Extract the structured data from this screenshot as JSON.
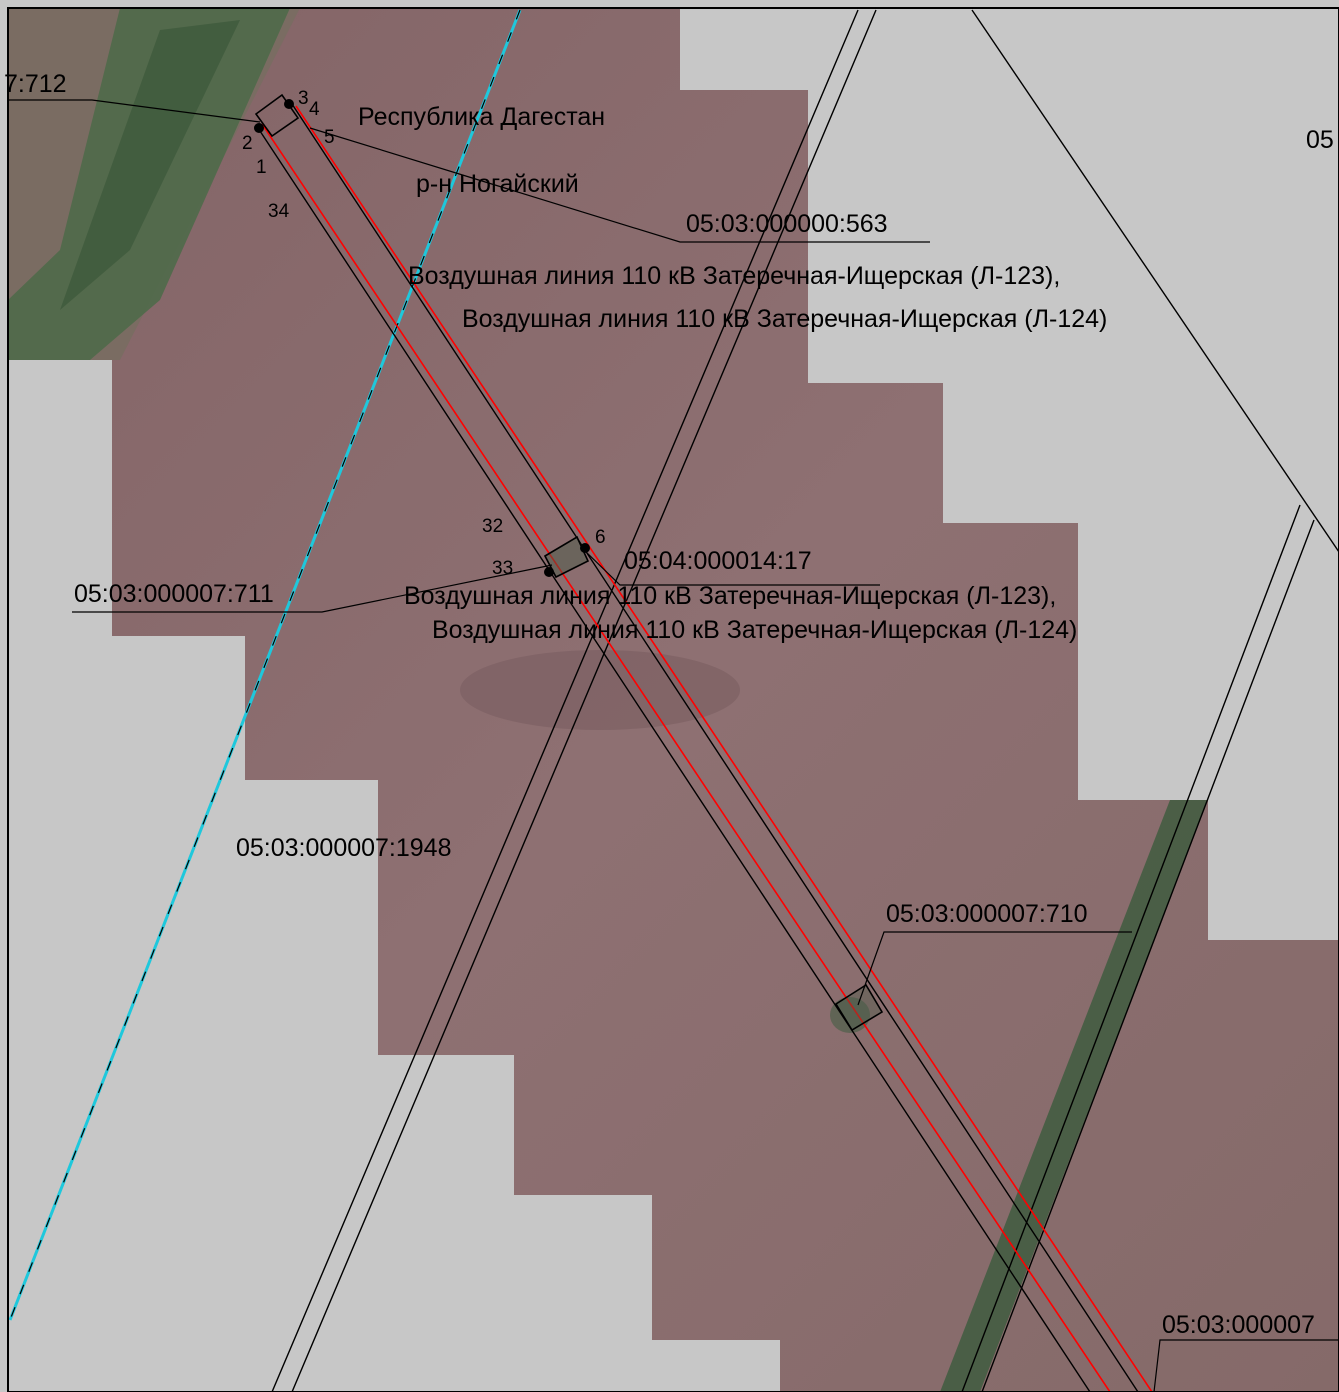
{
  "parcels": {
    "p712": "7:712",
    "p563": "05:03:000000:563",
    "p711": "05:03:000007:711",
    "p1417": "05:04:000014:17",
    "p1948": "05:03:000007:1948",
    "p710": "05:03:000007:710",
    "p_bottom_right": "05:03:000007",
    "p_top_right": "05"
  },
  "region": {
    "republic": "Республика Дагестан",
    "district": "р-н Ногайский"
  },
  "power_lines": {
    "upper_line1": "Воздушная линия 110 кВ Затеречная-Ищерская (Л-123),",
    "upper_line2": "Воздушная линия 110 кВ Затеречная-Ищерская (Л-124)",
    "lower_line1": "Воздушная линия 110 кВ Затеречная-Ищерская (Л-123),",
    "lower_line2": "Воздушная линия 110 кВ Затеречная-Ищерская (Л-124)"
  },
  "points": {
    "pt1": "1",
    "pt2": "2",
    "pt3": "3",
    "pt4": "4",
    "pt5": "5",
    "pt6": "6",
    "pt32": "32",
    "pt33": "33",
    "pt34": "34"
  },
  "colors": {
    "background": "#c7c7c7",
    "field": "#8a6b6e",
    "vegetation": "#4f6a4a",
    "boundary_red": "#ff0000",
    "boundary_cyan": "#1ec8dc",
    "lines": "#000000"
  }
}
